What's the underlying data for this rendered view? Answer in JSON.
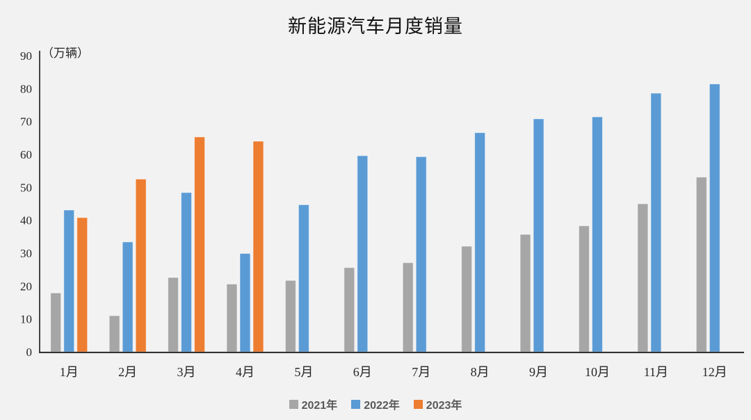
{
  "page": {
    "background_color": "#f2f2f2"
  },
  "chart_data": {
    "type": "bar",
    "title": "新能源汽车月度销量",
    "unit_label": "（万辆）",
    "xlabel": "",
    "ylabel": "万辆",
    "categories": [
      "1月",
      "2月",
      "3月",
      "4月",
      "5月",
      "6月",
      "7月",
      "8月",
      "9月",
      "10月",
      "11月",
      "12月"
    ],
    "series": [
      {
        "name": "2021年",
        "color": "#a6a6a6",
        "values": [
          17.9,
          11.0,
          22.6,
          20.6,
          21.7,
          25.6,
          27.1,
          32.1,
          35.7,
          38.3,
          45.0,
          53.1
        ]
      },
      {
        "name": "2022年",
        "color": "#5b9bd5",
        "values": [
          43.1,
          33.4,
          48.4,
          29.9,
          44.7,
          59.6,
          59.3,
          66.6,
          70.8,
          71.4,
          78.6,
          81.4
        ]
      },
      {
        "name": "2023年",
        "color": "#ed7d31",
        "values": [
          40.8,
          52.5,
          65.3,
          64.0,
          null,
          null,
          null,
          null,
          null,
          null,
          null,
          null
        ]
      }
    ],
    "ylim": [
      0,
      90
    ],
    "yticks": [
      0,
      10,
      20,
      30,
      40,
      50,
      60,
      70,
      80,
      90
    ],
    "grid": false,
    "legend_position": "bottom",
    "axis_color": "#1a1a1a",
    "tick_label_color": "#262626",
    "legend_text_color": "#595959",
    "bar_edge_color": "rgba(255,255,255,0.55)"
  }
}
